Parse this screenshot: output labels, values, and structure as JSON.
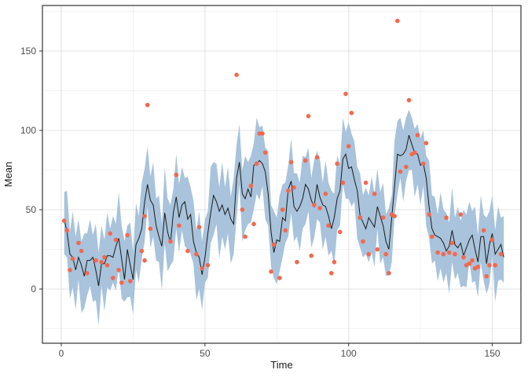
{
  "chart_data": {
    "type": "line",
    "title": "",
    "xlabel": "Time",
    "ylabel": "Mean",
    "x_ticks": [
      0,
      50,
      100,
      150
    ],
    "y_ticks": [
      0,
      50,
      100,
      150
    ],
    "x_minor_gridlines": [
      25,
      75,
      125
    ],
    "y_minor_gridlines": [
      -25,
      25,
      75,
      125,
      175
    ],
    "xlim": [
      -6.6,
      160
    ],
    "ylim": [
      -34,
      179
    ],
    "grid": "on",
    "legend": "none",
    "panel_background": "#ffffff",
    "panel_border_color": "#333333",
    "grid_major_color": "#e3e3e3",
    "grid_minor_color": "#f0f0f0",
    "ribbon_color": "#a8c3db",
    "line_color": "#1a1a1a",
    "point_color": "#f3684e",
    "tick_label_color": "#4d4d4d",
    "axis_title_color": "#1a1a1a",
    "series": [
      {
        "name": "mean-line-with-ribbon",
        "t_start": 1,
        "t_step": 1,
        "mean": [
          44,
          36,
          22,
          20,
          12,
          20,
          15,
          8,
          18,
          18,
          20,
          12,
          2,
          16,
          16,
          21,
          21,
          20,
          27,
          32,
          19,
          6,
          25,
          15,
          6,
          28,
          32,
          38,
          55,
          66,
          56,
          53,
          40,
          33,
          27,
          48,
          36,
          29,
          48,
          58,
          45,
          53,
          55,
          44,
          47,
          30,
          23,
          20,
          9,
          20,
          35,
          48,
          59,
          55,
          49,
          53,
          47,
          51,
          44,
          41,
          70,
          80,
          60,
          57,
          63,
          58,
          78,
          79,
          81,
          79,
          74,
          60,
          36,
          23,
          31,
          30,
          45,
          43,
          63,
          68,
          52,
          49,
          52,
          57,
          66,
          63,
          56,
          52,
          66,
          58,
          53,
          52,
          46,
          38,
          45,
          57,
          62,
          82,
          85,
          76,
          77,
          69,
          62,
          46,
          42,
          38,
          45,
          42,
          39,
          52,
          46,
          40,
          30,
          25,
          45,
          65,
          85,
          84,
          85,
          88,
          97,
          91,
          86,
          85,
          78,
          79,
          70,
          52,
          38,
          34,
          33,
          32,
          29,
          24,
          27,
          37,
          28,
          26,
          29,
          21,
          26,
          31,
          34,
          25,
          17,
          33,
          33,
          16,
          28,
          35,
          22,
          25,
          28,
          20
        ],
        "lower": [
          22,
          20,
          -6,
          1,
          -13,
          6,
          -15,
          -12,
          -4,
          2,
          -8,
          -7,
          -23,
          2,
          -14,
          1,
          -1,
          4,
          -1,
          13,
          -6,
          -8,
          -5,
          -5,
          -16,
          12,
          4,
          19,
          30,
          52,
          26,
          33,
          18,
          17,
          -1,
          29,
          11,
          15,
          18,
          38,
          23,
          37,
          27,
          25,
          22,
          16,
          -7,
          0,
          -13,
          4,
          7,
          29,
          34,
          41,
          19,
          33,
          25,
          35,
          16,
          22,
          45,
          66,
          30,
          37,
          41,
          42,
          50,
          60,
          56,
          65,
          44,
          40,
          14,
          7,
          3,
          11,
          20,
          29,
          33,
          48,
          30,
          33,
          24,
          38,
          41,
          49,
          26,
          32,
          44,
          42,
          25,
          33,
          21,
          24,
          15,
          37,
          40,
          66,
          57,
          57,
          52,
          55,
          32,
          26,
          20,
          22,
          17,
          23,
          14,
          38,
          16,
          20,
          8,
          9,
          17,
          46,
          60,
          70,
          55,
          68,
          75,
          75,
          58,
          66,
          53,
          65,
          40,
          32,
          16,
          18,
          5,
          13,
          4,
          10,
          -3,
          17,
          6,
          10,
          1,
          2,
          1,
          17,
          4,
          5,
          -5,
          17,
          5,
          -3,
          3,
          21,
          -8,
          5,
          6,
          4
        ],
        "upper": [
          61,
          62,
          36,
          49,
          33,
          44,
          30,
          35,
          35,
          44,
          34,
          41,
          23,
          40,
          31,
          48,
          38,
          46,
          41,
          61,
          40,
          30,
          40,
          42,
          23,
          54,
          46,
          67,
          76,
          90,
          71,
          80,
          57,
          59,
          41,
          77,
          57,
          53,
          63,
          85,
          66,
          77,
          70,
          71,
          64,
          56,
          37,
          49,
          30,
          44,
          49,
          77,
          80,
          79,
          64,
          80,
          64,
          77,
          58,
          70,
          91,
          104,
          75,
          84,
          80,
          84,
          92,
          108,
          102,
          103,
          89,
          87,
          53,
          49,
          45,
          59,
          66,
          67,
          78,
          95,
          73,
          73,
          67,
          84,
          83,
          89,
          70,
          81,
          87,
          82,
          67,
          81,
          67,
          62,
          60,
          84,
          79,
          108,
          99,
          105,
          98,
          93,
          77,
          73,
          59,
          64,
          59,
          71,
          60,
          76,
          61,
          67,
          47,
          51,
          59,
          94,
          106,
          108,
          100,
          108,
          113,
          108,
          101,
          104,
          95,
          100,
          84,
          81,
          59,
          58,
          47,
          61,
          50,
          48,
          42,
          64,
          45,
          52,
          43,
          50,
          47,
          55,
          49,
          52,
          34,
          59,
          47,
          45,
          49,
          59,
          37,
          52,
          45,
          46
        ]
      },
      {
        "name": "observations-scatter",
        "t": [
          1,
          2,
          3,
          4,
          6,
          7,
          9,
          12,
          14,
          15,
          16,
          17,
          18,
          19,
          20,
          21,
          23,
          24,
          28,
          29,
          29,
          30,
          31,
          38,
          40,
          41,
          44,
          47,
          48,
          49,
          51,
          61,
          63,
          64,
          66,
          67,
          68,
          69,
          70,
          71,
          73,
          74,
          76,
          77,
          78,
          79,
          80,
          81,
          82,
          85,
          86,
          87,
          88,
          89,
          90,
          92,
          93,
          94,
          95,
          96,
          97,
          98,
          99,
          100,
          101,
          104,
          105,
          106,
          107,
          109,
          110,
          112,
          113,
          114,
          115,
          116,
          117,
          118,
          120,
          121,
          122,
          123,
          124,
          126,
          127,
          128,
          129,
          131,
          133,
          134,
          135,
          136,
          137,
          139,
          140,
          141,
          142,
          143,
          144,
          145,
          147,
          148,
          149,
          150,
          151,
          153
        ],
        "value": [
          43,
          37,
          12,
          19,
          29,
          24,
          10,
          18,
          17,
          20,
          15,
          35,
          7,
          31,
          12,
          4,
          34,
          5,
          24,
          46,
          18,
          116,
          38,
          30,
          72,
          40,
          24,
          22,
          39,
          13,
          15,
          135,
          50,
          33,
          65,
          41,
          79,
          98,
          98,
          86,
          11,
          28,
          7,
          50,
          37,
          62,
          80,
          64,
          17,
          81,
          109,
          21,
          53,
          83,
          51,
          60,
          40,
          10,
          17,
          79,
          36,
          67,
          123,
          90,
          111,
          45,
          30,
          67,
          22,
          60,
          25,
          45,
          22,
          10,
          47,
          46,
          169,
          74,
          77,
          119,
          85,
          86,
          97,
          79,
          92,
          47,
          33,
          23,
          22,
          45,
          23,
          29,
          22,
          47,
          20,
          15,
          16,
          18,
          13,
          14,
          37,
          8,
          15,
          31,
          15,
          22
        ]
      }
    ]
  }
}
